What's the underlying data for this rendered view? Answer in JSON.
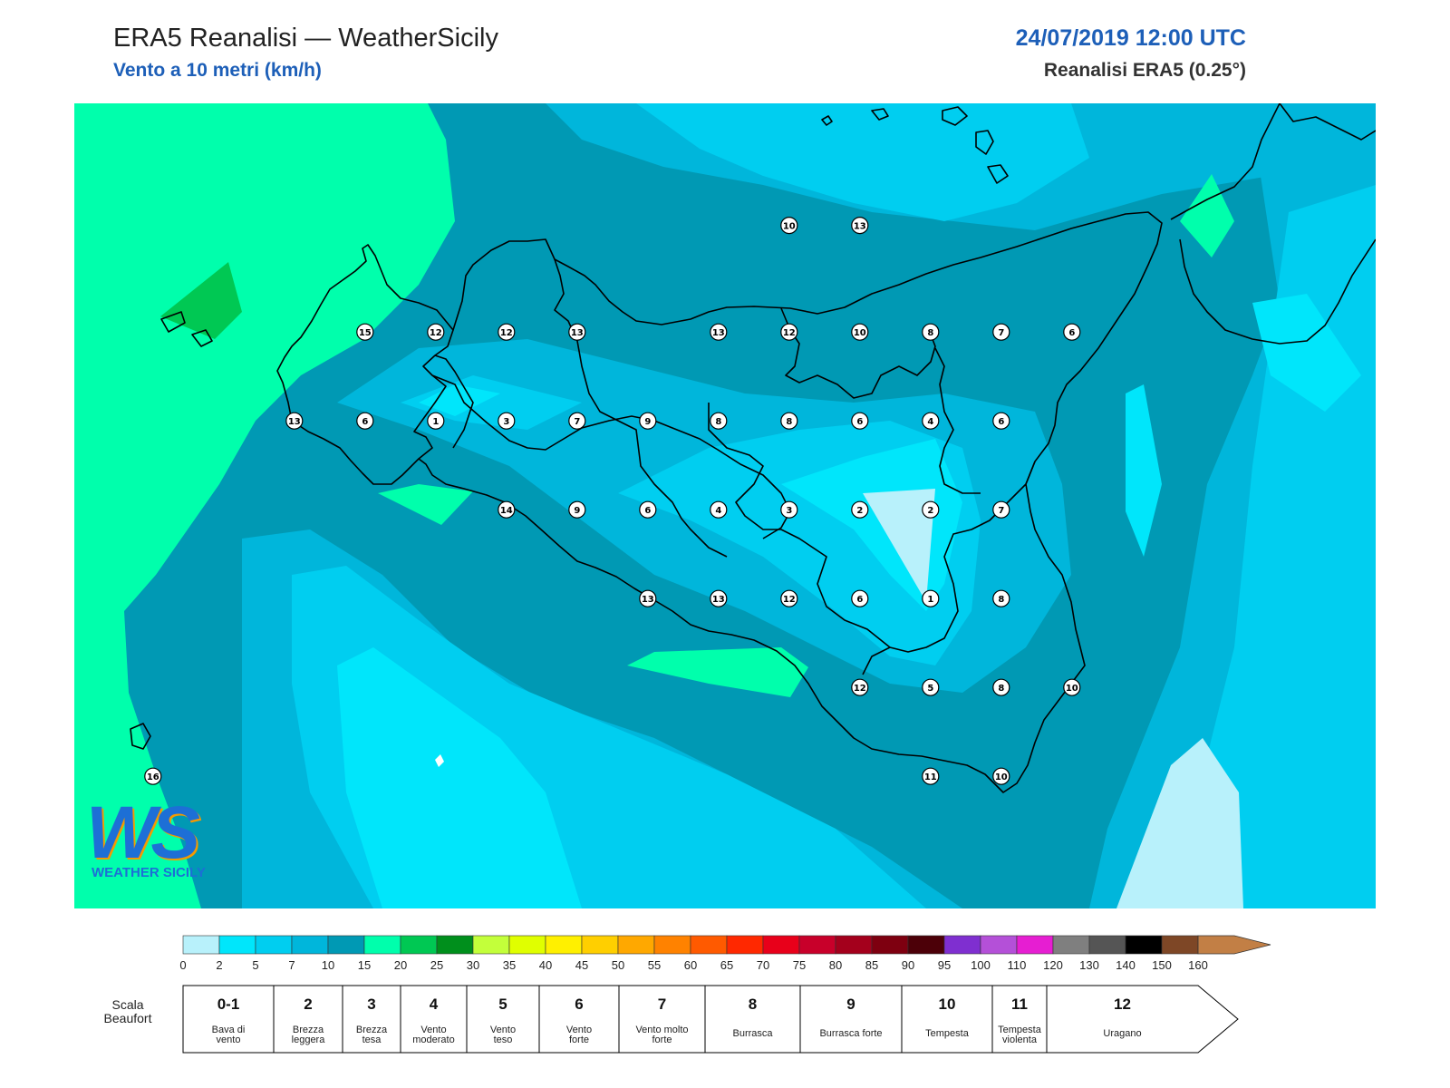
{
  "header": {
    "title_left": "ERA5 Reanalisi — WeatherSicily",
    "subtitle_left": "Vento a 10 metri (km/h)",
    "title_right": "24/07/2019 12:00 UTC",
    "subtitle_right": "Reanalisi ERA5 (0.25°)"
  },
  "logo": {
    "letters": "WS",
    "text": "WEATHER SICILY"
  },
  "colors": {
    "c0": "#b8f1fb",
    "c2": "#00e6fb",
    "c5": "#00cef0",
    "c7": "#00b6db",
    "c10": "#0099b4",
    "c15": "#00ffac",
    "c20": "#00c853",
    "c25": "#008f1c",
    "coast": "#000000"
  },
  "stations": [
    {
      "v": "10",
      "lon": 15.55,
      "lat": 38.85
    },
    {
      "v": "13",
      "lon": 16.05,
      "lat": 38.85
    },
    {
      "v": "15",
      "lon": 12.55,
      "lat": 38.25
    },
    {
      "v": "12",
      "lon": 13.05,
      "lat": 38.25
    },
    {
      "v": "12",
      "lon": 13.55,
      "lat": 38.25
    },
    {
      "v": "13",
      "lon": 14.05,
      "lat": 38.25
    },
    {
      "v": "13",
      "lon": 15.05,
      "lat": 38.25
    },
    {
      "v": "12",
      "lon": 15.55,
      "lat": 38.25
    },
    {
      "v": "10",
      "lon": 16.05,
      "lat": 38.25
    },
    {
      "v": "8",
      "lon": 16.55,
      "lat": 38.25
    },
    {
      "v": "7",
      "lon": 17.05,
      "lat": 38.25
    },
    {
      "v": "6",
      "lon": 17.55,
      "lat": 38.25
    },
    {
      "v": "13",
      "lon": 12.05,
      "lat": 37.75
    },
    {
      "v": "6",
      "lon": 12.55,
      "lat": 37.75
    },
    {
      "v": "1",
      "lon": 13.05,
      "lat": 37.75
    },
    {
      "v": "3",
      "lon": 13.55,
      "lat": 37.75
    },
    {
      "v": "7",
      "lon": 14.05,
      "lat": 37.75
    },
    {
      "v": "9",
      "lon": 14.55,
      "lat": 37.75
    },
    {
      "v": "8",
      "lon": 15.05,
      "lat": 37.75
    },
    {
      "v": "8",
      "lon": 15.55,
      "lat": 37.75
    },
    {
      "v": "6",
      "lon": 16.05,
      "lat": 37.75
    },
    {
      "v": "4",
      "lon": 16.55,
      "lat": 37.75
    },
    {
      "v": "6",
      "lon": 17.05,
      "lat": 37.75
    },
    {
      "v": "14",
      "lon": 13.55,
      "lat": 37.25
    },
    {
      "v": "9",
      "lon": 14.05,
      "lat": 37.25
    },
    {
      "v": "6",
      "lon": 14.55,
      "lat": 37.25
    },
    {
      "v": "4",
      "lon": 15.05,
      "lat": 37.25
    },
    {
      "v": "3",
      "lon": 15.55,
      "lat": 37.25
    },
    {
      "v": "2",
      "lon": 16.05,
      "lat": 37.25
    },
    {
      "v": "2",
      "lon": 16.55,
      "lat": 37.25
    },
    {
      "v": "7",
      "lon": 17.05,
      "lat": 37.25
    },
    {
      "v": "13",
      "lon": 14.55,
      "lat": 36.75
    },
    {
      "v": "13",
      "lon": 15.05,
      "lat": 36.75
    },
    {
      "v": "12",
      "lon": 15.55,
      "lat": 36.75
    },
    {
      "v": "6",
      "lon": 16.05,
      "lat": 36.75
    },
    {
      "v": "1",
      "lon": 16.55,
      "lat": 36.75
    },
    {
      "v": "8",
      "lon": 17.05,
      "lat": 36.75
    },
    {
      "v": "12",
      "lon": 16.05,
      "lat": 36.25
    },
    {
      "v": "5",
      "lon": 16.55,
      "lat": 36.25
    },
    {
      "v": "8",
      "lon": 17.05,
      "lat": 36.25
    },
    {
      "v": "10",
      "lon": 17.55,
      "lat": 36.25
    },
    {
      "v": "11",
      "lon": 16.55,
      "lat": 35.75
    },
    {
      "v": "10",
      "lon": 17.05,
      "lat": 35.75
    },
    {
      "v": "16",
      "lon": 11.05,
      "lat": 35.75
    }
  ],
  "colorbar": {
    "ticks": [
      "0",
      "2",
      "5",
      "7",
      "10",
      "15",
      "20",
      "25",
      "30",
      "35",
      "40",
      "45",
      "50",
      "55",
      "60",
      "65",
      "70",
      "75",
      "80",
      "85",
      "90",
      "95",
      "100",
      "110",
      "120",
      "130",
      "140",
      "150",
      "160"
    ],
    "colors": [
      "#b8f1fb",
      "#00e6fb",
      "#00cef0",
      "#00b6db",
      "#0099b4",
      "#00ffac",
      "#00c853",
      "#008f1c",
      "#c3ff3a",
      "#e0ff00",
      "#fff000",
      "#ffcf00",
      "#ffa800",
      "#ff8200",
      "#ff5a00",
      "#ff2800",
      "#e8001a",
      "#c8002a",
      "#a4001c",
      "#7e0010",
      "#4c0008",
      "#7f2fd0",
      "#b450d8",
      "#e61ed2",
      "#7f7f7f",
      "#555555",
      "#000000",
      "#7e4726",
      "#c27f45"
    ]
  },
  "beaufort": {
    "label": "Scala Beaufort",
    "classes": [
      {
        "n": "0-1",
        "desc": "Bava di vento"
      },
      {
        "n": "2",
        "desc": "Brezza leggera"
      },
      {
        "n": "3",
        "desc": "Brezza tesa"
      },
      {
        "n": "4",
        "desc": "Vento moderato"
      },
      {
        "n": "5",
        "desc": "Vento teso"
      },
      {
        "n": "6",
        "desc": "Vento forte"
      },
      {
        "n": "7",
        "desc": "Vento molto forte"
      },
      {
        "n": "8",
        "desc": "Burrasca"
      },
      {
        "n": "9",
        "desc": "Burrasca forte"
      },
      {
        "n": "10",
        "desc": "Tempesta"
      },
      {
        "n": "11",
        "desc": "Tempesta violenta"
      },
      {
        "n": "12",
        "desc": "Uragano"
      }
    ]
  }
}
